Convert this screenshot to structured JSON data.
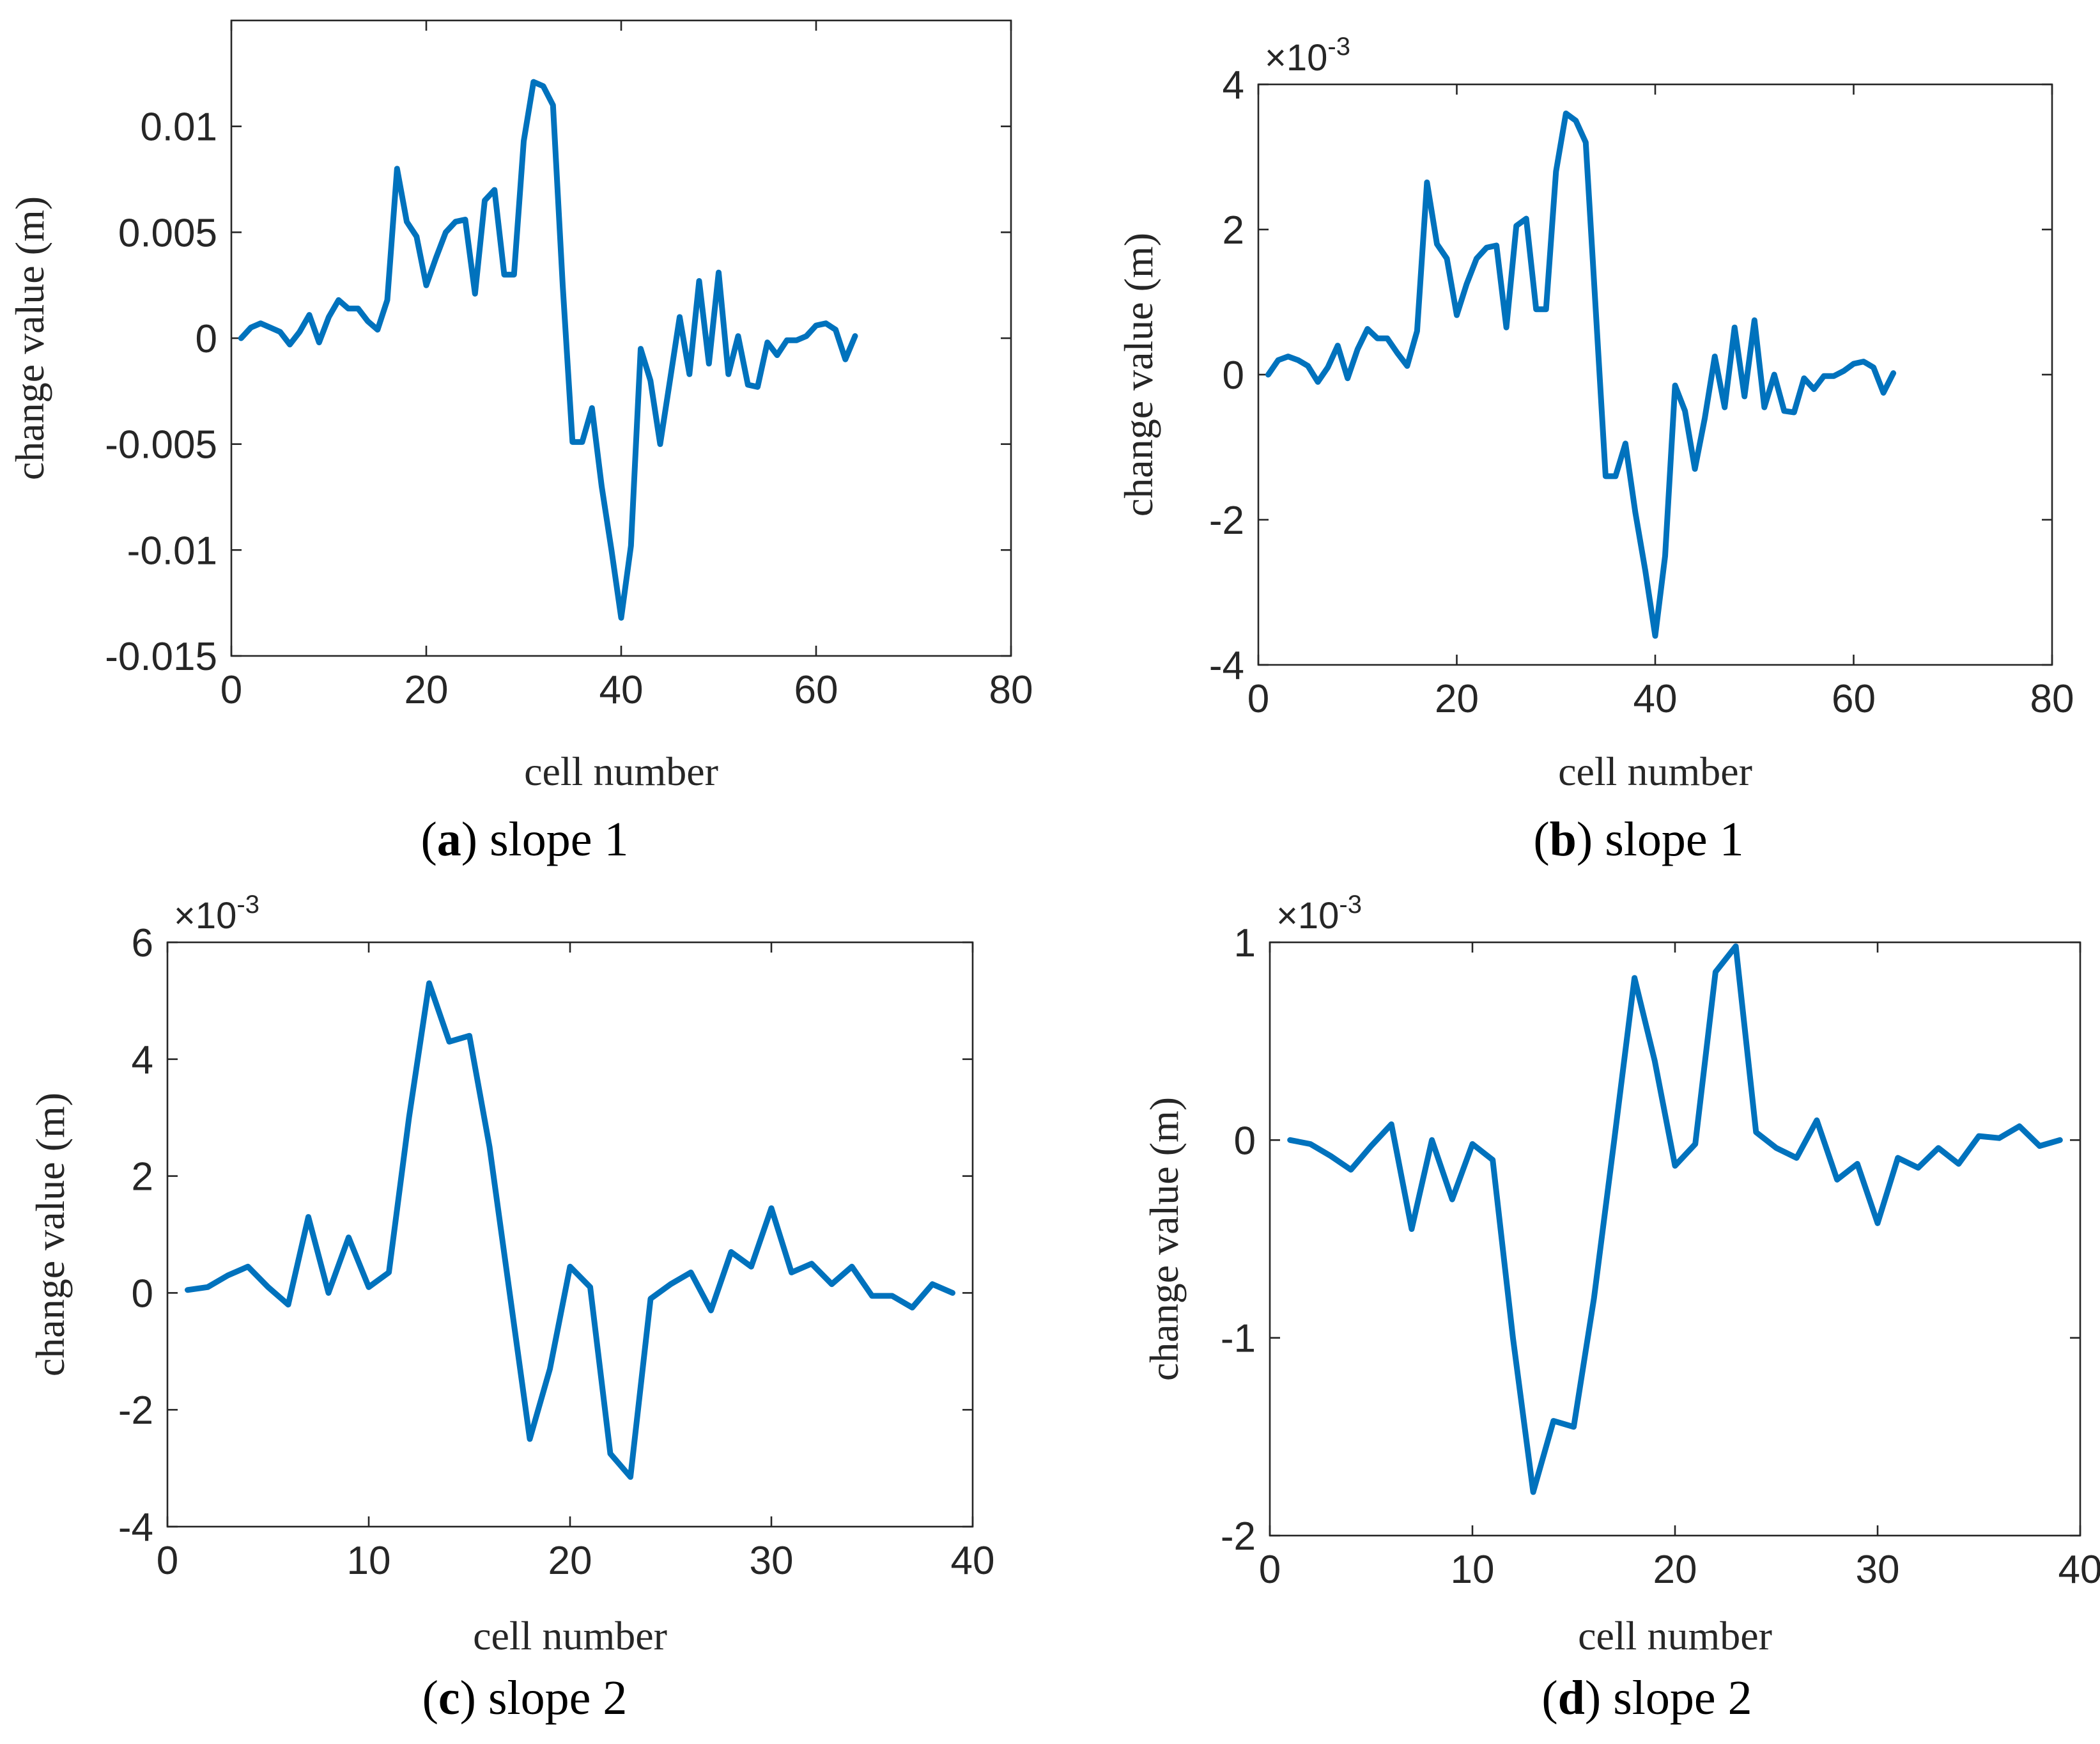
{
  "chart_data": [
    {
      "type": "line",
      "caption": {
        "open": "(",
        "letter": "a",
        "rest": ") slope 1"
      },
      "xlabel": "cell number",
      "ylabel": "change value (m)",
      "exponent": "",
      "xlim": [
        0,
        80
      ],
      "ylim": [
        -0.015,
        0.015
      ],
      "xticks": [
        0,
        20,
        40,
        60,
        80
      ],
      "xtick_labels": [
        "0",
        "20",
        "40",
        "60",
        "80"
      ],
      "yticks": [
        -0.015,
        -0.01,
        -0.005,
        0,
        0.005,
        0.01
      ],
      "ytick_labels": [
        "-0.015",
        "-0.01",
        "-0.005",
        "0",
        "0.005",
        "0.01"
      ],
      "color": "#0072BD",
      "x": [
        1,
        2,
        3,
        4,
        5,
        6,
        7,
        8,
        9,
        10,
        11,
        12,
        13,
        14,
        15,
        16,
        17,
        18,
        19,
        20,
        21,
        22,
        23,
        24,
        25,
        26,
        27,
        28,
        29,
        30,
        31,
        32,
        33,
        34,
        35,
        36,
        37,
        38,
        39,
        40,
        41,
        42,
        43,
        44,
        45,
        46,
        47,
        48,
        49,
        50,
        51,
        52,
        53,
        54,
        55,
        56,
        57,
        58,
        59,
        60,
        61,
        62,
        63,
        64
      ],
      "y": [
        0.0,
        0.0005,
        0.0007,
        0.0005,
        0.0003,
        -0.0003,
        0.0003,
        0.0011,
        -0.0002,
        0.001,
        0.0018,
        0.0014,
        0.0014,
        0.0008,
        0.0004,
        0.0018,
        0.008,
        0.0055,
        0.0048,
        0.0025,
        0.0038,
        0.005,
        0.0055,
        0.0056,
        0.0021,
        0.0065,
        0.007,
        0.003,
        0.003,
        0.0093,
        0.0121,
        0.0119,
        0.011,
        0.0025,
        -0.0049,
        -0.0049,
        -0.0033,
        -0.007,
        -0.01,
        -0.0132,
        -0.0098,
        -0.0005,
        -0.002,
        -0.005,
        -0.002,
        0.001,
        -0.0017,
        0.0027,
        -0.0012,
        0.0031,
        -0.0017,
        0.0001,
        -0.0022,
        -0.0023,
        -0.0002,
        -0.0008,
        -0.0001,
        -0.0001,
        0.0001,
        0.0006,
        0.0007,
        0.0004,
        -0.001,
        0.0001
      ]
    },
    {
      "type": "line",
      "caption": {
        "open": "(",
        "letter": "b",
        "rest": ") slope 1"
      },
      "xlabel": "cell number",
      "ylabel": "change value (m)",
      "exponent": "-3",
      "xlim": [
        0,
        80
      ],
      "ylim": [
        -4,
        4
      ],
      "xticks": [
        0,
        20,
        40,
        60,
        80
      ],
      "xtick_labels": [
        "0",
        "20",
        "40",
        "60",
        "80"
      ],
      "yticks": [
        -4,
        -2,
        0,
        2,
        4
      ],
      "ytick_labels": [
        "-4",
        "-2",
        "0",
        "2",
        "4"
      ],
      "color": "#0072BD",
      "x": [
        1,
        2,
        3,
        4,
        5,
        6,
        7,
        8,
        9,
        10,
        11,
        12,
        13,
        14,
        15,
        16,
        17,
        18,
        19,
        20,
        21,
        22,
        23,
        24,
        25,
        26,
        27,
        28,
        29,
        30,
        31,
        32,
        33,
        34,
        35,
        36,
        37,
        38,
        39,
        40,
        41,
        42,
        43,
        44,
        45,
        46,
        47,
        48,
        49,
        50,
        51,
        52,
        53,
        54,
        55,
        56,
        57,
        58,
        59,
        60,
        61,
        62,
        63,
        64
      ],
      "y": [
        0.0,
        0.2,
        0.25,
        0.2,
        0.12,
        -0.1,
        0.1,
        0.4,
        -0.05,
        0.35,
        0.63,
        0.5,
        0.5,
        0.3,
        0.12,
        0.6,
        2.65,
        1.8,
        1.6,
        0.82,
        1.25,
        1.6,
        1.75,
        1.78,
        0.65,
        2.05,
        2.15,
        0.9,
        0.9,
        2.8,
        3.6,
        3.5,
        3.2,
        0.9,
        -1.4,
        -1.4,
        -0.95,
        -1.9,
        -2.7,
        -3.6,
        -2.5,
        -0.15,
        -0.5,
        -1.3,
        -0.6,
        0.25,
        -0.45,
        0.65,
        -0.3,
        0.75,
        -0.45,
        0.0,
        -0.5,
        -0.52,
        -0.05,
        -0.2,
        -0.02,
        -0.02,
        0.05,
        0.15,
        0.18,
        0.1,
        -0.25,
        0.02
      ]
    },
    {
      "type": "line",
      "caption": {
        "open": "(",
        "letter": "c",
        "rest": ") slope 2"
      },
      "xlabel": "cell number",
      "ylabel": "change value (m)",
      "exponent": "-3",
      "xlim": [
        0,
        40
      ],
      "ylim": [
        -4,
        6
      ],
      "xticks": [
        0,
        10,
        20,
        30,
        40
      ],
      "xtick_labels": [
        "0",
        "10",
        "20",
        "30",
        "40"
      ],
      "yticks": [
        -4,
        -2,
        0,
        2,
        4,
        6
      ],
      "ytick_labels": [
        "-4",
        "-2",
        "0",
        "2",
        "4",
        "6"
      ],
      "color": "#0072BD",
      "x": [
        1,
        2,
        3,
        4,
        5,
        6,
        7,
        8,
        9,
        10,
        11,
        12,
        13,
        14,
        15,
        16,
        17,
        18,
        19,
        20,
        21,
        22,
        23,
        24,
        25,
        26,
        27,
        28,
        29,
        30,
        31,
        32,
        33,
        34,
        35,
        36,
        37,
        38,
        39
      ],
      "y": [
        0.05,
        0.1,
        0.3,
        0.45,
        0.1,
        -0.2,
        1.3,
        0.0,
        0.95,
        0.1,
        0.35,
        3.0,
        5.3,
        4.3,
        4.4,
        2.5,
        0.0,
        -2.5,
        -1.3,
        0.45,
        0.1,
        -2.75,
        -3.15,
        -0.1,
        0.15,
        0.35,
        -0.3,
        0.7,
        0.45,
        1.45,
        0.35,
        0.5,
        0.15,
        0.45,
        -0.05,
        -0.05,
        -0.25,
        0.15,
        0.0
      ]
    },
    {
      "type": "line",
      "caption": {
        "open": "(",
        "letter": "d",
        "rest": ") slope 2"
      },
      "xlabel": "cell number",
      "ylabel": "change value (m)",
      "exponent": "-3",
      "xlim": [
        0,
        40
      ],
      "ylim": [
        -2,
        1
      ],
      "xticks": [
        0,
        10,
        20,
        30,
        40
      ],
      "xtick_labels": [
        "0",
        "10",
        "20",
        "30",
        "40"
      ],
      "yticks": [
        -2,
        -1,
        0,
        1
      ],
      "ytick_labels": [
        "-2",
        "-1",
        "0",
        "1"
      ],
      "color": "#0072BD",
      "x": [
        1,
        2,
        3,
        4,
        5,
        6,
        7,
        8,
        9,
        10,
        11,
        12,
        13,
        14,
        15,
        16,
        17,
        18,
        19,
        20,
        21,
        22,
        23,
        24,
        25,
        26,
        27,
        28,
        29,
        30,
        31,
        32,
        33,
        34,
        35,
        36,
        37,
        38,
        39
      ],
      "y": [
        0.0,
        -0.02,
        -0.08,
        -0.15,
        -0.03,
        0.08,
        -0.45,
        0.0,
        -0.3,
        -0.02,
        -0.1,
        -1.0,
        -1.78,
        -1.42,
        -1.45,
        -0.8,
        0.0,
        0.82,
        0.4,
        -0.13,
        -0.02,
        0.85,
        0.98,
        0.04,
        -0.04,
        -0.09,
        0.1,
        -0.2,
        -0.12,
        -0.42,
        -0.09,
        -0.14,
        -0.04,
        -0.12,
        0.02,
        0.01,
        0.07,
        -0.03,
        0.0
      ]
    }
  ]
}
